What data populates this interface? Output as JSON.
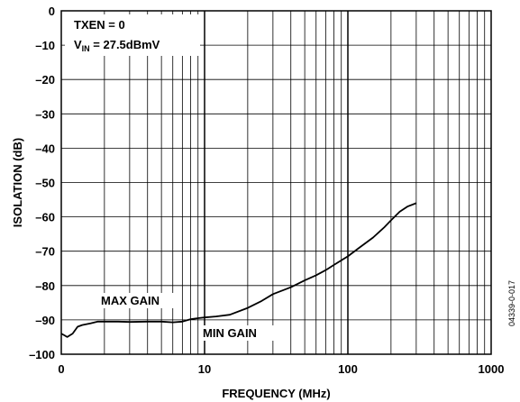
{
  "chart_data": {
    "type": "line",
    "xlabel": "FREQUENCY (MHz)",
    "ylabel": "ISOLATION (dB)",
    "x_scale": "log",
    "xlim": [
      1,
      1000
    ],
    "ylim": [
      -100,
      0
    ],
    "grid": true,
    "x_tick_labels": [
      "0",
      "10",
      "100",
      "1000"
    ],
    "y_ticks": [
      0,
      -10,
      -20,
      -30,
      -40,
      -50,
      -60,
      -70,
      -80,
      -90,
      -100
    ],
    "y_tick_labels": [
      "0",
      "–10",
      "–20",
      "–30",
      "–40",
      "–50",
      "–60",
      "–70",
      "–80",
      "–90",
      "–100"
    ],
    "series": [
      {
        "x": [
          1,
          1.05,
          1.1,
          1.2,
          1.3,
          1.4,
          1.6,
          1.8,
          2,
          2.5,
          3,
          4,
          5,
          6,
          7,
          8,
          9,
          10,
          12,
          15,
          20,
          25,
          30,
          40,
          50,
          60,
          70,
          80,
          100,
          120,
          150,
          180,
          200,
          230,
          260,
          300
        ],
        "y": [
          -94,
          -94.5,
          -95,
          -94,
          -92,
          -91.5,
          -91,
          -90.5,
          -90.5,
          -90.5,
          -90.6,
          -90.5,
          -90.5,
          -90.7,
          -90.5,
          -89.8,
          -89.5,
          -89.3,
          -89,
          -88.5,
          -86.5,
          -84.5,
          -82.5,
          -80.5,
          -78.5,
          -77,
          -75.5,
          -74,
          -71.5,
          -69,
          -66,
          -63,
          -61,
          -58.5,
          -57,
          -56
        ]
      }
    ]
  },
  "annotations": {
    "txen": "TXEN = 0",
    "vin_v": "V",
    "vin_sub": "IN",
    "vin_rest": " = 27.5dBmV",
    "max_gain": "MAX GAIN",
    "min_gain": "MIN GAIN"
  },
  "figure_id": "04339-0-017"
}
